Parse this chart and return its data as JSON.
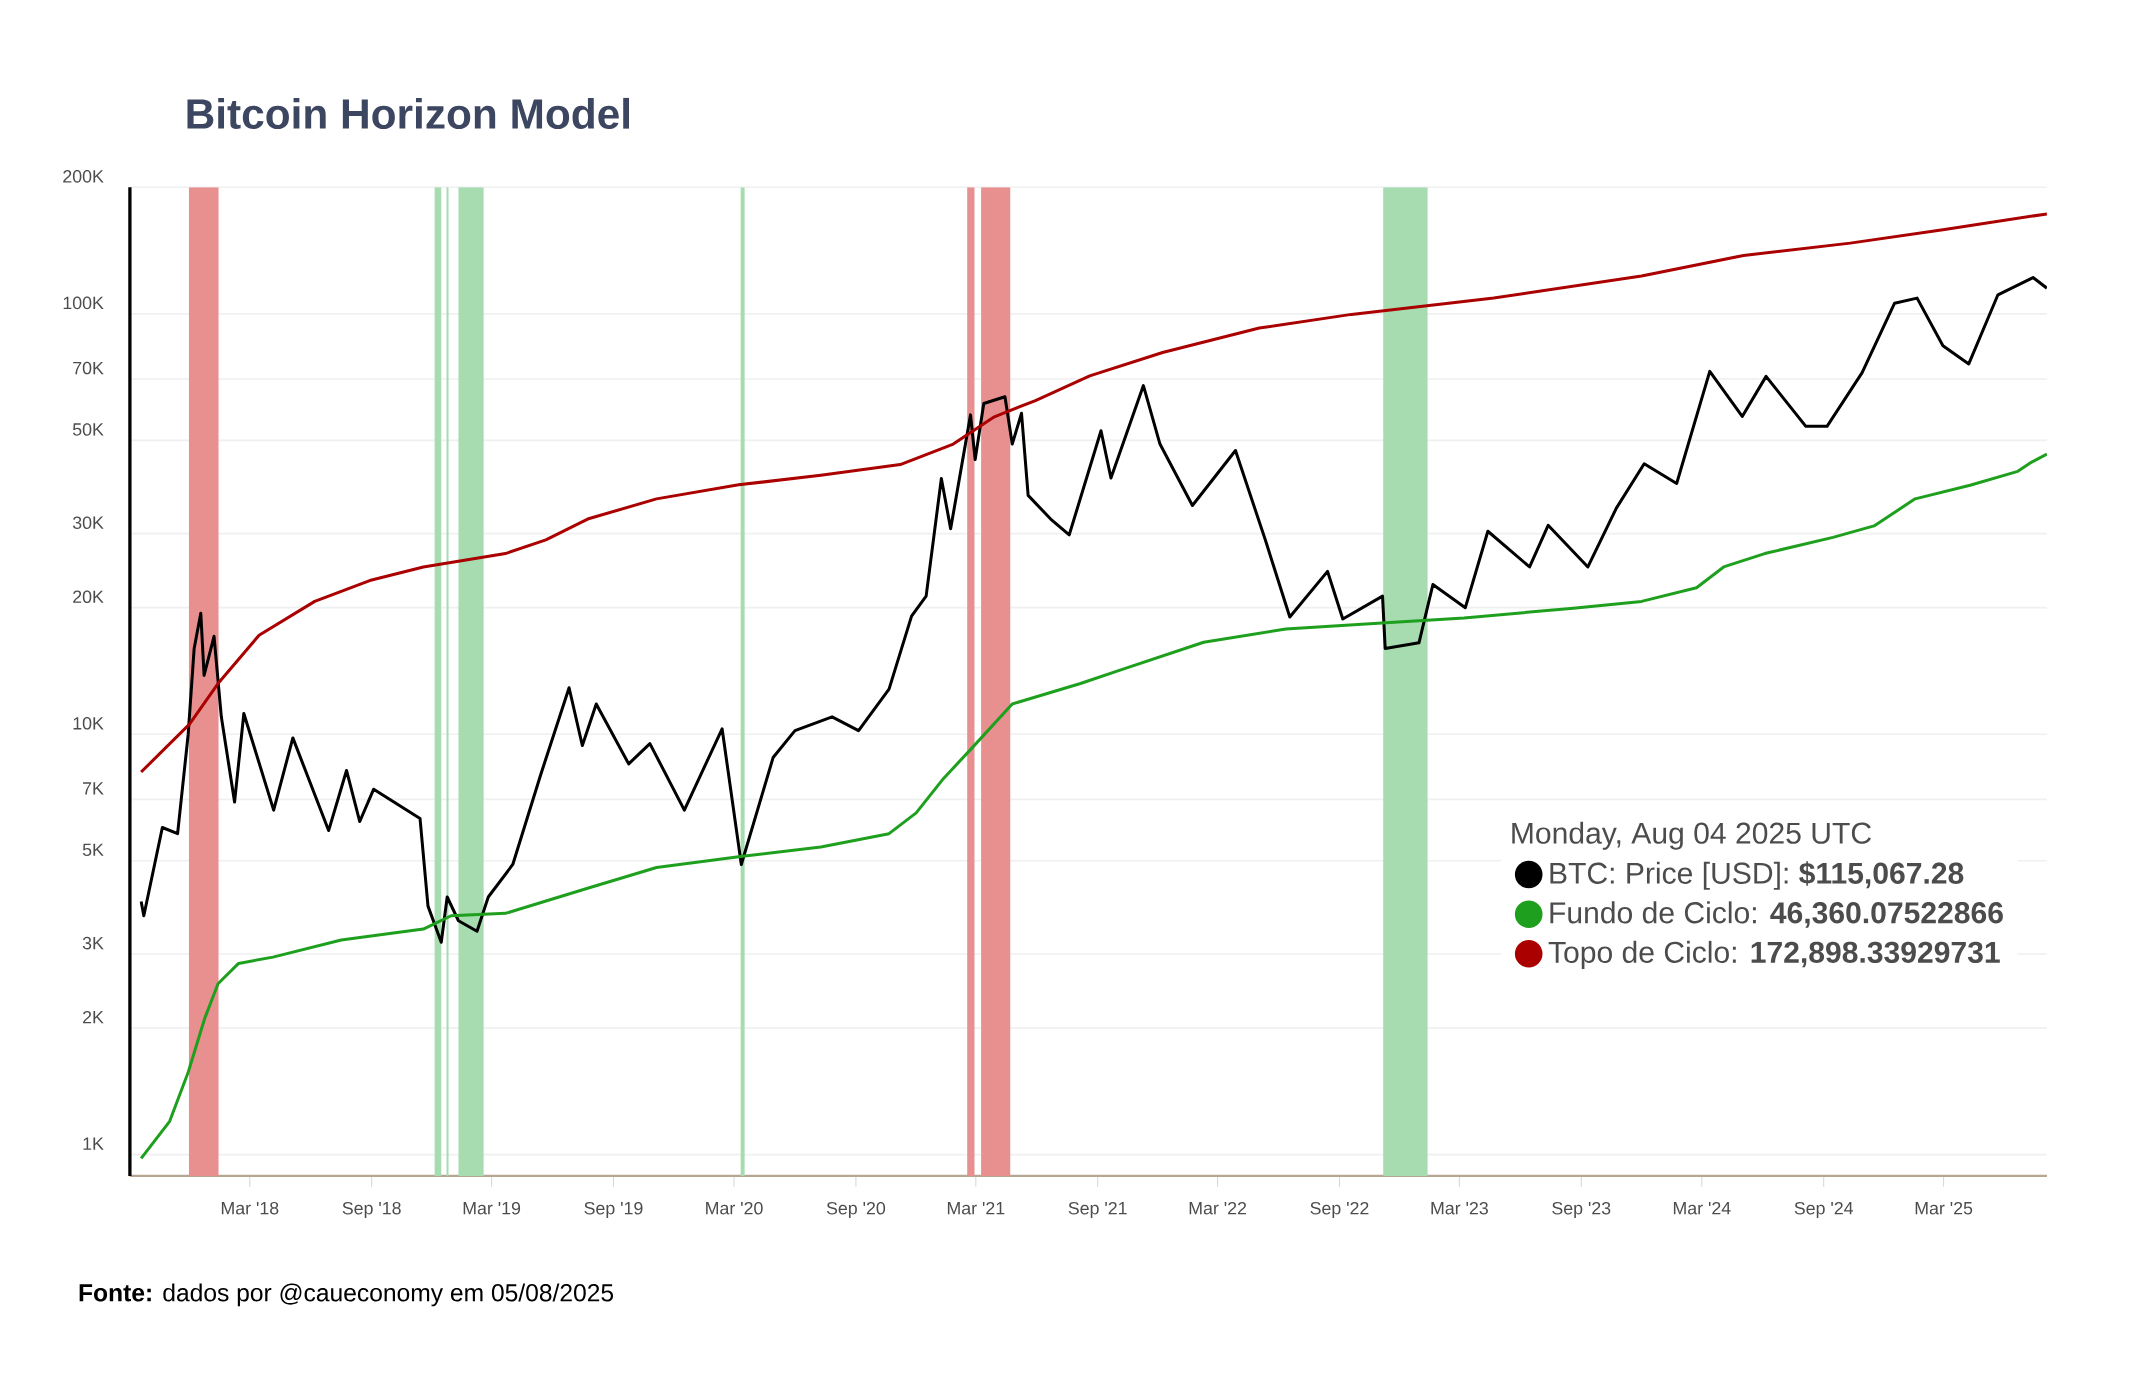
{
  "chart_data": {
    "type": "line",
    "title": "Bitcoin Horizon Model",
    "annotations": [
      "**Fonte:** dados por @caueconomy em 05/08/2025"
    ],
    "legend_title": "Monday, Aug 04 2025 UTC",
    "series": [
      {
        "name": "BTC: Price [USD]: **$115,067.28**",
        "color": "#000000",
        "x": [
          "2017-09-18",
          "2017-09-22",
          "2017-10-20",
          "2017-11-12",
          "2017-11-28",
          "2017-12-07",
          "2017-12-17",
          "2017-12-22",
          "2018-01-06",
          "2018-01-17",
          "2018-02-06",
          "2018-02-20",
          "2018-04-06",
          "2018-05-05",
          "2018-06-28",
          "2018-07-25",
          "2018-08-14",
          "2018-09-04",
          "2018-11-13",
          "2018-11-25",
          "2018-12-15",
          "2018-12-24",
          "2019-01-10",
          "2019-02-07",
          "2019-02-24",
          "2019-04-02",
          "2019-05-14",
          "2019-06-26",
          "2019-07-16",
          "2019-08-06",
          "2019-09-24",
          "2019-10-26",
          "2019-12-17",
          "2020-02-12",
          "2020-03-12",
          "2020-04-29",
          "2020-06-01",
          "2020-07-27",
          "2020-09-05",
          "2020-10-21",
          "2020-11-24",
          "2020-12-16",
          "2021-01-08",
          "2021-01-22",
          "2021-02-21",
          "2021-02-28",
          "2021-03-13",
          "2021-04-14",
          "2021-04-25",
          "2021-05-09",
          "2021-05-19",
          "2021-06-22",
          "2021-07-20",
          "2021-09-06",
          "2021-09-21",
          "2021-11-09",
          "2021-12-04",
          "2022-01-22",
          "2022-03-28",
          "2022-05-12",
          "2022-06-18",
          "2022-08-14",
          "2022-09-06",
          "2022-11-05",
          "2022-11-09",
          "2022-12-30",
          "2023-01-20",
          "2023-03-10",
          "2023-04-13",
          "2023-06-15",
          "2023-07-13",
          "2023-09-11",
          "2023-10-24",
          "2023-12-05",
          "2024-01-23",
          "2024-03-13",
          "2024-05-01",
          "2024-06-06",
          "2024-08-05",
          "2024-09-06",
          "2024-10-29",
          "2024-12-17",
          "2025-01-20",
          "2025-02-28",
          "2025-04-08",
          "2025-05-22",
          "2025-07-14",
          "2025-08-04"
        ],
        "values": [
          4000,
          3700,
          6000,
          5800,
          10000,
          16000,
          19400,
          13800,
          17100,
          11000,
          6900,
          11200,
          6600,
          9800,
          5900,
          8200,
          6200,
          7400,
          6300,
          3900,
          3200,
          4100,
          3600,
          3400,
          4100,
          4900,
          8000,
          12900,
          9400,
          11800,
          8500,
          9500,
          6600,
          10300,
          4900,
          8800,
          10200,
          11000,
          10200,
          12800,
          19100,
          21300,
          40600,
          30800,
          57500,
          45000,
          61200,
          63500,
          49000,
          58000,
          37000,
          32500,
          29800,
          52700,
          40700,
          67500,
          49000,
          35000,
          47300,
          29000,
          19000,
          24400,
          18800,
          21300,
          16000,
          16500,
          22700,
          20000,
          30400,
          25000,
          31400,
          25000,
          34500,
          44000,
          39500,
          73000,
          57000,
          71000,
          54000,
          54000,
          72500,
          106000,
          109000,
          84000,
          76000,
          111000,
          122000,
          115067.28
        ]
      },
      {
        "name": "Fundo de Ciclo: **46,360.07522866**",
        "color": "#1ea01e",
        "x": [
          "2017-09-18",
          "2017-10-31",
          "2017-11-28",
          "2017-12-23",
          "2018-01-12",
          "2018-02-12",
          "2018-04-05",
          "2018-07-17",
          "2018-11-18",
          "2018-12-30",
          "2019-03-22",
          "2019-07-24",
          "2019-11-05",
          "2020-03-08",
          "2020-07-10",
          "2020-10-21",
          "2020-12-01",
          "2021-01-11",
          "2021-02-22",
          "2021-04-25",
          "2021-08-06",
          "2021-10-07",
          "2022-02-08",
          "2022-06-12",
          "2022-11-04",
          "2023-03-08",
          "2023-08-20",
          "2023-12-01",
          "2024-02-22",
          "2024-04-03",
          "2024-06-04",
          "2024-09-15",
          "2024-11-16",
          "2025-01-17",
          "2025-04-10",
          "2025-06-21",
          "2025-07-12",
          "2025-08-04"
        ],
        "values": [
          980,
          1200,
          1570,
          2110,
          2550,
          2850,
          2950,
          3240,
          3440,
          3700,
          3750,
          4300,
          4820,
          5110,
          5390,
          5800,
          6500,
          7840,
          9230,
          11800,
          13200,
          14250,
          16550,
          17800,
          18400,
          18900,
          19950,
          20700,
          22300,
          25000,
          26900,
          29400,
          31300,
          36300,
          39100,
          42200,
          44400,
          46360.07522866
        ]
      },
      {
        "name": "Topo de Ciclo: **172,898.33929731**",
        "color": "#aa0000",
        "x": [
          "2017-09-18",
          "2017-11-30",
          "2018-01-12",
          "2018-03-15",
          "2018-06-07",
          "2018-08-29",
          "2018-11-18",
          "2019-03-22",
          "2019-05-22",
          "2019-07-24",
          "2019-11-05",
          "2020-03-08",
          "2020-07-10",
          "2020-11-07",
          "2021-01-26",
          "2021-03-29",
          "2021-05-30",
          "2021-08-20",
          "2021-12-08",
          "2022-05-03",
          "2022-09-19",
          "2023-04-22",
          "2023-12-01",
          "2024-05-03",
          "2024-10-11",
          "2025-02-28",
          "2025-08-04"
        ],
        "values": [
          8130,
          10570,
          13200,
          17200,
          20700,
          23200,
          25000,
          26900,
          29000,
          32500,
          36300,
          39200,
          41300,
          43800,
          49000,
          56900,
          62200,
          71200,
          80900,
          92500,
          99700,
          109000,
          123000,
          137700,
          147300,
          158600,
          172898.33929731
        ]
      }
    ],
    "bands": [
      {
        "axis": "x",
        "from": "2017-11-29",
        "to": "2018-01-13",
        "color": "#e88f8f"
      },
      {
        "axis": "x",
        "from": "2021-02-16",
        "to": "2021-02-27",
        "color": "#e88f8f"
      },
      {
        "axis": "x",
        "from": "2021-03-09",
        "to": "2021-04-22",
        "color": "#e88f8f"
      },
      {
        "axis": "x",
        "from": "2018-12-05",
        "to": "2018-12-15",
        "color": "#a6dcb0"
      },
      {
        "axis": "x",
        "from": "2018-12-23",
        "to": "2018-12-26",
        "color": "#a6dcb0"
      },
      {
        "axis": "x",
        "from": "2019-01-10",
        "to": "2019-02-17",
        "color": "#a6dcb0"
      },
      {
        "axis": "x",
        "from": "2020-03-11",
        "to": "2020-03-17",
        "color": "#a6dcb0"
      },
      {
        "axis": "x",
        "from": "2022-11-06",
        "to": "2023-01-12",
        "color": "#a6dcb0"
      }
    ],
    "xlim": [
      "2017-09-01",
      "2025-08-04"
    ],
    "xticks": [
      {
        "value": "2018-03-01",
        "label": "Mar '18"
      },
      {
        "value": "2018-09-01",
        "label": "Sep '18"
      },
      {
        "value": "2019-03-01",
        "label": "Mar '19"
      },
      {
        "value": "2019-09-01",
        "label": "Sep '19"
      },
      {
        "value": "2020-03-01",
        "label": "Mar '20"
      },
      {
        "value": "2020-09-01",
        "label": "Sep '20"
      },
      {
        "value": "2021-03-01",
        "label": "Mar '21"
      },
      {
        "value": "2021-09-01",
        "label": "Sep '21"
      },
      {
        "value": "2022-03-01",
        "label": "Mar '22"
      },
      {
        "value": "2022-09-01",
        "label": "Sep '22"
      },
      {
        "value": "2023-03-01",
        "label": "Mar '23"
      },
      {
        "value": "2023-09-01",
        "label": "Sep '23"
      },
      {
        "value": "2024-03-01",
        "label": "Mar '24"
      },
      {
        "value": "2024-09-01",
        "label": "Sep '24"
      },
      {
        "value": "2025-03-01",
        "label": "Mar '25"
      }
    ],
    "ylim": [
      890,
      200000
    ],
    "yticks": [
      {
        "value": 1000,
        "label": "1K"
      },
      {
        "value": 2000,
        "label": "2K"
      },
      {
        "value": 3000,
        "label": "3K"
      },
      {
        "value": 5000,
        "label": "5K"
      },
      {
        "value": 7000,
        "label": "7K"
      },
      {
        "value": 10000,
        "label": "10K"
      },
      {
        "value": 20000,
        "label": "20K"
      },
      {
        "value": 30000,
        "label": "30K"
      },
      {
        "value": 50000,
        "label": "50K"
      },
      {
        "value": 70000,
        "label": "70K"
      },
      {
        "value": 100000,
        "label": "100K"
      },
      {
        "value": 200000,
        "label": "200K"
      }
    ],
    "log": "y",
    "grid": "y",
    "legend": "bottom right",
    "line_style": "solid"
  }
}
